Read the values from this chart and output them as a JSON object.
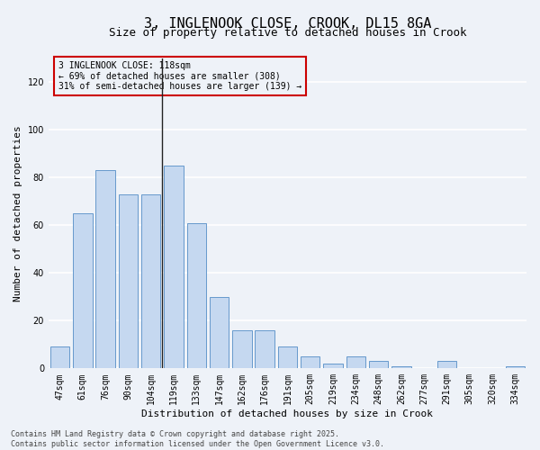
{
  "title": "3, INGLENOOK CLOSE, CROOK, DL15 8GA",
  "subtitle": "Size of property relative to detached houses in Crook",
  "xlabel": "Distribution of detached houses by size in Crook",
  "ylabel": "Number of detached properties",
  "categories": [
    "47sqm",
    "61sqm",
    "76sqm",
    "90sqm",
    "104sqm",
    "119sqm",
    "133sqm",
    "147sqm",
    "162sqm",
    "176sqm",
    "191sqm",
    "205sqm",
    "219sqm",
    "234sqm",
    "248sqm",
    "262sqm",
    "277sqm",
    "291sqm",
    "305sqm",
    "320sqm",
    "334sqm"
  ],
  "values": [
    9,
    65,
    83,
    73,
    73,
    85,
    61,
    30,
    16,
    16,
    9,
    5,
    2,
    5,
    3,
    1,
    0,
    3,
    0,
    0,
    1
  ],
  "bar_color": "#c5d8f0",
  "bar_edge_color": "#6699cc",
  "ylim": [
    0,
    130
  ],
  "yticks": [
    0,
    20,
    40,
    60,
    80,
    100,
    120
  ],
  "vline_index": 5,
  "vline_color": "#222222",
  "annotation_title": "3 INGLENOOK CLOSE: 118sqm",
  "annotation_line1": "← 69% of detached houses are smaller (308)",
  "annotation_line2": "31% of semi-detached houses are larger (139) →",
  "annotation_box_color": "#cc0000",
  "footer": "Contains HM Land Registry data © Crown copyright and database right 2025.\nContains public sector information licensed under the Open Government Licence v3.0.",
  "background_color": "#eef2f8",
  "grid_color": "#ffffff",
  "title_fontsize": 11,
  "subtitle_fontsize": 9,
  "label_fontsize": 8,
  "tick_fontsize": 7,
  "annotation_fontsize": 7,
  "footer_fontsize": 6
}
